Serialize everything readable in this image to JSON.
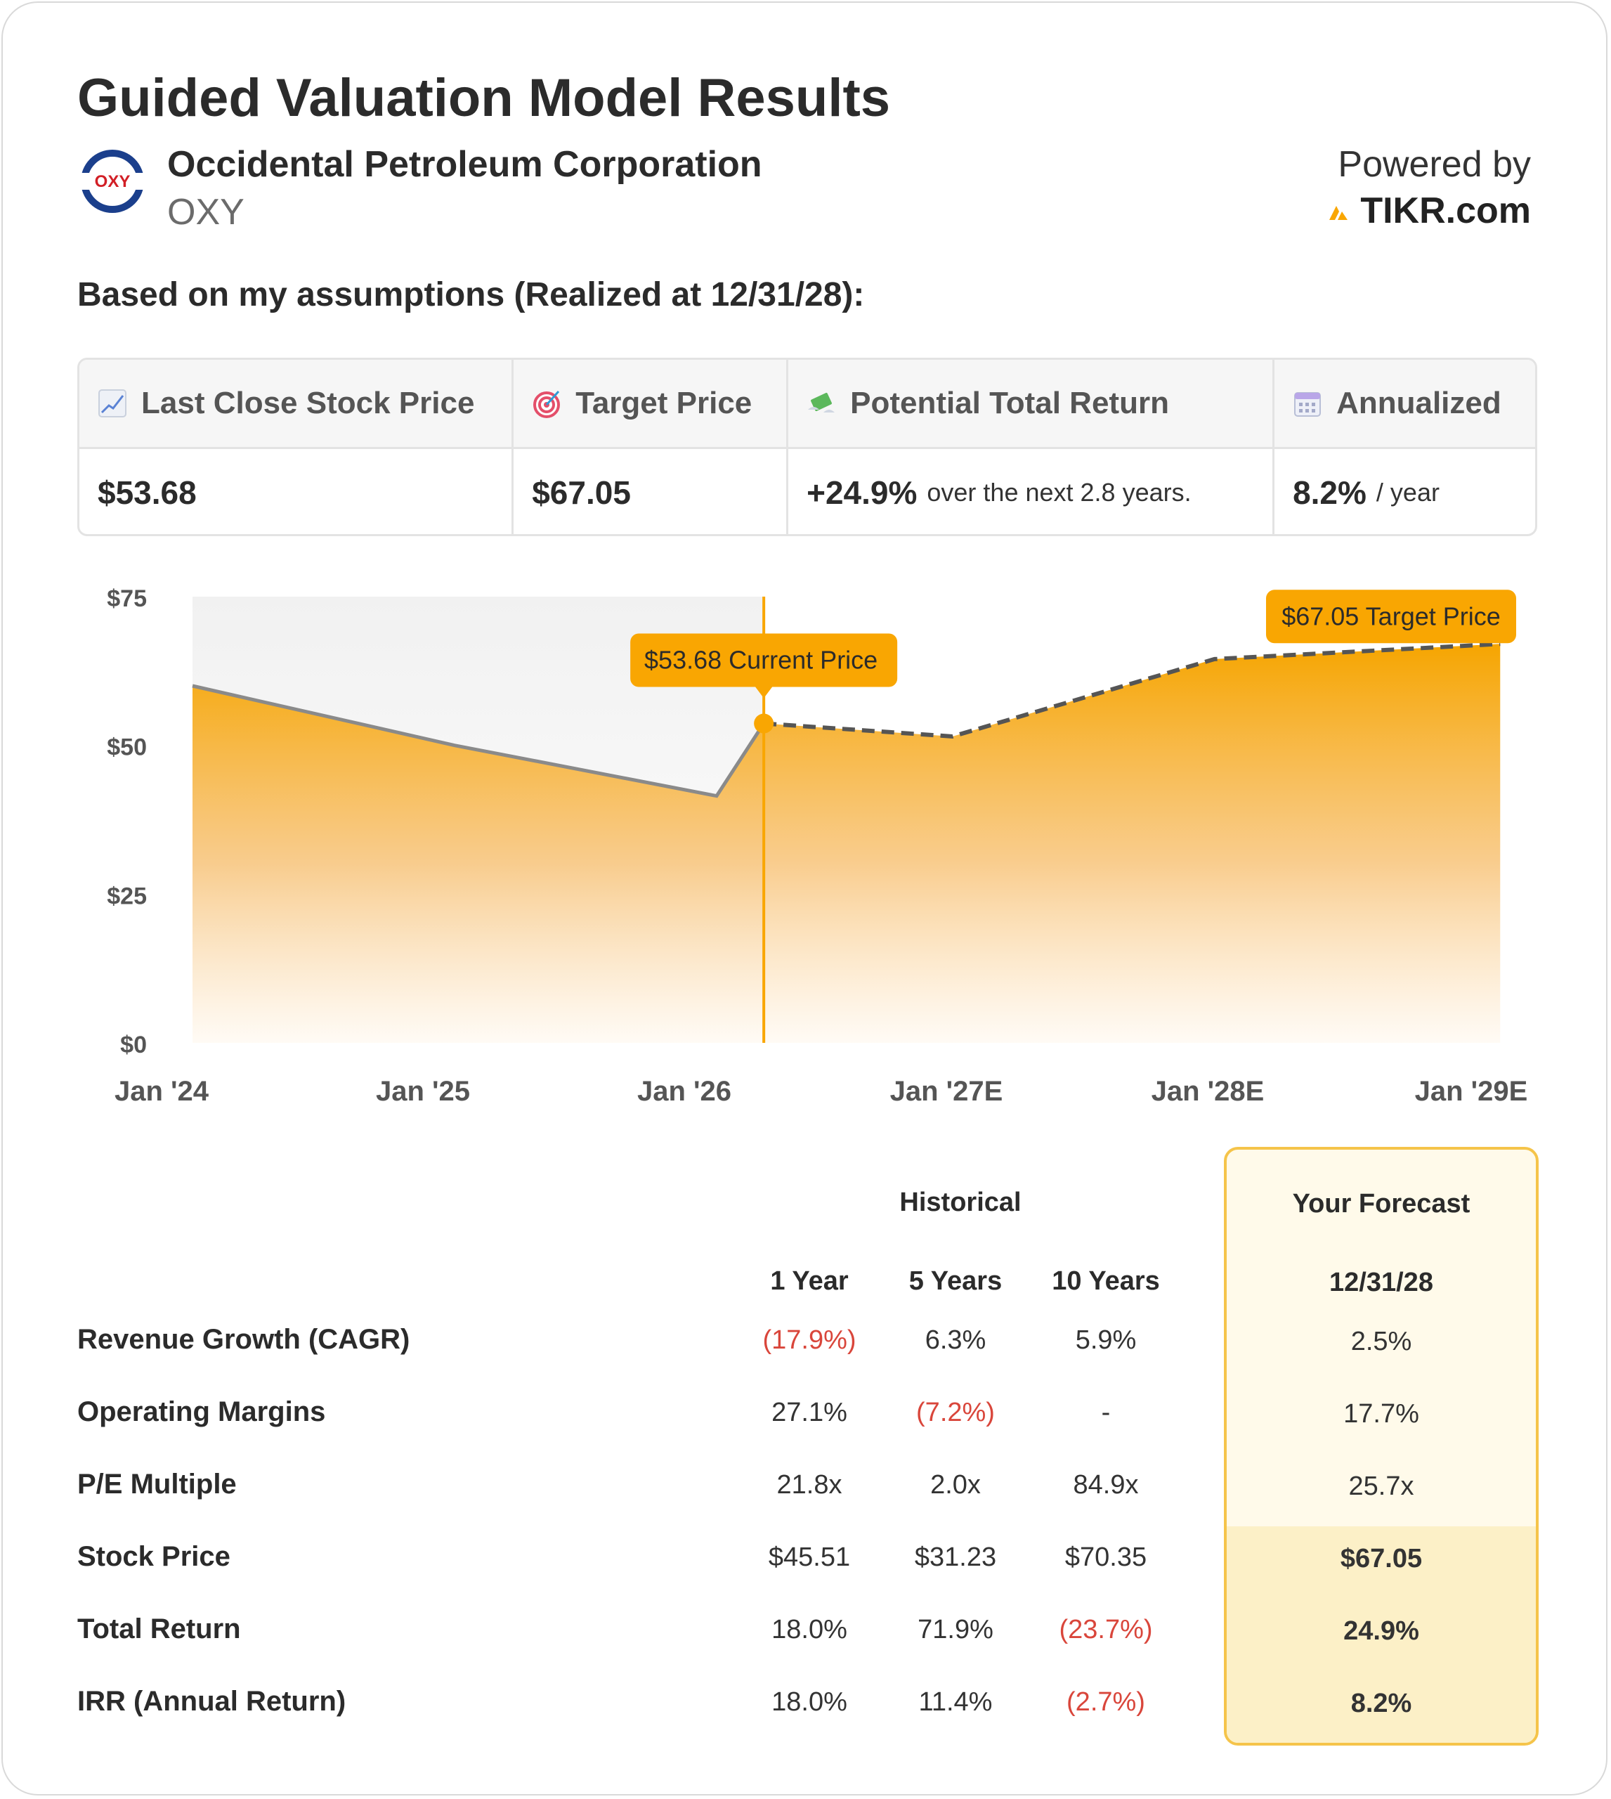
{
  "header": {
    "title": "Guided Valuation Model Results",
    "company_name": "Occidental Petroleum Corporation",
    "ticker": "OXY",
    "logo_text": "OXY",
    "powered_by": "Powered by",
    "brand": "TIKR.com"
  },
  "assumption_line": "Based on my assumptions (Realized at 12/31/28):",
  "summary": {
    "headers": [
      {
        "icon": "chart-increasing-icon",
        "label": "Last Close Stock Price"
      },
      {
        "icon": "target-icon",
        "label": "Target Price"
      },
      {
        "icon": "money-wings-icon",
        "label": "Potential Total Return"
      },
      {
        "icon": "calendar-icon",
        "label": "Annualized"
      }
    ],
    "last_close": "$53.68",
    "target_price": "$67.05",
    "total_return": "+24.9%",
    "total_return_suffix": "over the next 2.8 years.",
    "annualized": "8.2%",
    "annualized_suffix": "/ year"
  },
  "chart_data": {
    "type": "area",
    "y_ticks": [
      "$75",
      "$50",
      "$25",
      "$0"
    ],
    "ylim": [
      0,
      75
    ],
    "x_ticks": [
      "Jan '24",
      "Jan '25",
      "Jan '26",
      "Jan '27E",
      "Jan '28E",
      "Jan '29E"
    ],
    "historical": {
      "x": [
        2024.0,
        2025.0,
        2026.0,
        2026.18
      ],
      "y": [
        60.0,
        50.0,
        41.5,
        53.68
      ]
    },
    "forecast": {
      "x": [
        2026.18,
        2026.9,
        2027.9,
        2028.99
      ],
      "y": [
        53.68,
        51.5,
        64.5,
        67.05
      ]
    },
    "current_marker": {
      "x": 2026.18,
      "y": 53.68,
      "label": "$53.68 Current Price"
    },
    "target_marker": {
      "x": 2028.99,
      "y": 67.05,
      "label": "$67.05 Target Price"
    },
    "colors": {
      "accent": "#f9a602",
      "line": "#8a8a8a",
      "historical_bg": "#f3f3f3"
    }
  },
  "table": {
    "historical_label": "Historical",
    "forecast_label": "Your Forecast",
    "columns": [
      "1 Year",
      "5 Years",
      "10 Years"
    ],
    "forecast_column": "12/31/28",
    "rows": [
      {
        "label": "Revenue Growth (CAGR)",
        "values": [
          "(17.9%)",
          "6.3%",
          "5.9%"
        ],
        "negative": [
          true,
          false,
          false
        ],
        "forecast": "2.5%"
      },
      {
        "label": "Operating Margins",
        "values": [
          "27.1%",
          "(7.2%)",
          "-"
        ],
        "negative": [
          false,
          true,
          false
        ],
        "forecast": "17.7%"
      },
      {
        "label": "P/E Multiple",
        "values": [
          "21.8x",
          "2.0x",
          "84.9x"
        ],
        "negative": [
          false,
          false,
          false
        ],
        "forecast": "25.7x"
      },
      {
        "label": "Stock Price",
        "values": [
          "$45.51",
          "$31.23",
          "$70.35"
        ],
        "negative": [
          false,
          false,
          false
        ],
        "forecast": "$67.05"
      },
      {
        "label": "Total Return",
        "values": [
          "18.0%",
          "71.9%",
          "(23.7%)"
        ],
        "negative": [
          false,
          false,
          true
        ],
        "forecast": "24.9%"
      },
      {
        "label": "IRR (Annual Return)",
        "values": [
          "18.0%",
          "11.4%",
          "(2.7%)"
        ],
        "negative": [
          false,
          false,
          true
        ],
        "forecast": "8.2%"
      }
    ]
  }
}
